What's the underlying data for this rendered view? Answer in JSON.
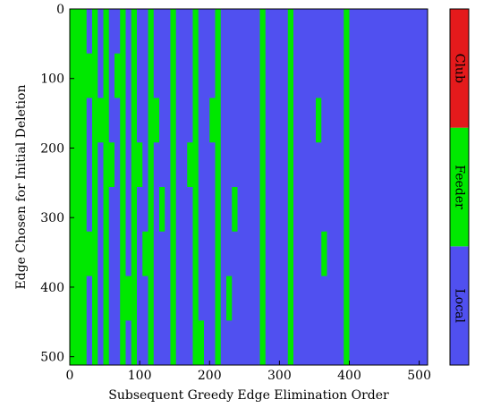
{
  "chart_data": {
    "type": "heatmap",
    "xlabel": "Subsequent Greedy Edge Elimination Order",
    "ylabel": "Edge Chosen for Initial Deletion",
    "xlim": [
      0,
      512
    ],
    "ylim": [
      0,
      512
    ],
    "y_inverted": true,
    "xticks": [
      0,
      100,
      200,
      300,
      400,
      500
    ],
    "yticks": [
      0,
      100,
      200,
      300,
      400,
      500
    ],
    "categories": [
      "Local",
      "Feeder",
      "Club"
    ],
    "colors": [
      "#5050f0",
      "#00e800",
      "#e41a1c"
    ],
    "z": [
      [
        1,
        1,
        1,
        0,
        1,
        0,
        1,
        0,
        0,
        1,
        0,
        1,
        0,
        0,
        1,
        0,
        0,
        0,
        1,
        0,
        0,
        0,
        1,
        0,
        0,
        0,
        1,
        0,
        0,
        0,
        0,
        0,
        0,
        0,
        1,
        0,
        0,
        0,
        0,
        1,
        0,
        0,
        0,
        0,
        0,
        0,
        0,
        0,
        0,
        1,
        0,
        0,
        0,
        0,
        0,
        0,
        0,
        0,
        0,
        0,
        0,
        0,
        0,
        0
      ],
      [
        1,
        1,
        1,
        1,
        1,
        0,
        1,
        0,
        1,
        1,
        0,
        1,
        0,
        0,
        1,
        0,
        0,
        0,
        1,
        0,
        0,
        0,
        1,
        0,
        0,
        0,
        1,
        0,
        0,
        0,
        0,
        0,
        0,
        0,
        1,
        0,
        0,
        0,
        0,
        1,
        0,
        0,
        0,
        0,
        0,
        0,
        0,
        0,
        0,
        1,
        0,
        0,
        0,
        0,
        0,
        0,
        0,
        0,
        0,
        0,
        0,
        0,
        0,
        0
      ],
      [
        1,
        1,
        1,
        0,
        1,
        1,
        1,
        0,
        0,
        1,
        0,
        1,
        0,
        0,
        1,
        1,
        0,
        0,
        1,
        0,
        0,
        0,
        1,
        0,
        0,
        1,
        1,
        0,
        0,
        0,
        0,
        0,
        0,
        0,
        1,
        0,
        0,
        0,
        0,
        1,
        0,
        0,
        0,
        0,
        1,
        0,
        0,
        0,
        0,
        1,
        0,
        0,
        0,
        0,
        0,
        0,
        0,
        0,
        0,
        0,
        0,
        0,
        0,
        0
      ],
      [
        1,
        1,
        1,
        0,
        1,
        0,
        1,
        1,
        0,
        1,
        0,
        1,
        1,
        0,
        1,
        0,
        0,
        0,
        1,
        0,
        0,
        1,
        1,
        0,
        0,
        0,
        1,
        0,
        0,
        0,
        0,
        0,
        0,
        0,
        1,
        0,
        0,
        0,
        0,
        1,
        0,
        0,
        0,
        0,
        0,
        0,
        0,
        0,
        0,
        1,
        0,
        0,
        0,
        0,
        0,
        0,
        0,
        0,
        0,
        0,
        0,
        0,
        0,
        0
      ],
      [
        1,
        1,
        1,
        0,
        1,
        0,
        1,
        0,
        0,
        1,
        0,
        1,
        0,
        0,
        1,
        0,
        1,
        0,
        1,
        0,
        0,
        0,
        1,
        0,
        0,
        0,
        1,
        0,
        0,
        1,
        0,
        0,
        0,
        0,
        1,
        0,
        0,
        0,
        0,
        1,
        0,
        0,
        0,
        0,
        0,
        0,
        0,
        0,
        0,
        1,
        0,
        0,
        0,
        0,
        0,
        0,
        0,
        0,
        0,
        0,
        0,
        0,
        0,
        0
      ],
      [
        1,
        1,
        1,
        1,
        1,
        0,
        1,
        0,
        0,
        1,
        0,
        1,
        0,
        1,
        1,
        0,
        0,
        0,
        1,
        0,
        0,
        0,
        1,
        0,
        0,
        0,
        1,
        0,
        0,
        0,
        0,
        0,
        0,
        0,
        1,
        0,
        0,
        0,
        0,
        1,
        0,
        0,
        0,
        0,
        0,
        1,
        0,
        0,
        0,
        1,
        0,
        0,
        0,
        0,
        0,
        0,
        0,
        0,
        0,
        0,
        0,
        0,
        0,
        0
      ],
      [
        1,
        1,
        1,
        0,
        1,
        0,
        1,
        0,
        0,
        1,
        1,
        1,
        0,
        0,
        1,
        0,
        0,
        0,
        1,
        0,
        0,
        0,
        1,
        0,
        0,
        0,
        1,
        0,
        1,
        0,
        0,
        0,
        0,
        0,
        1,
        0,
        0,
        0,
        0,
        1,
        0,
        0,
        0,
        0,
        0,
        0,
        0,
        0,
        0,
        1,
        0,
        0,
        0,
        0,
        0,
        0,
        0,
        0,
        0,
        0,
        0,
        0,
        0,
        0
      ],
      [
        1,
        1,
        1,
        0,
        1,
        0,
        1,
        0,
        0,
        1,
        0,
        1,
        0,
        0,
        1,
        0,
        0,
        0,
        1,
        0,
        0,
        0,
        1,
        1,
        0,
        0,
        1,
        0,
        0,
        0,
        0,
        0,
        0,
        0,
        1,
        0,
        0,
        0,
        0,
        1,
        0,
        0,
        0,
        0,
        0,
        0,
        0,
        0,
        0,
        1,
        0,
        0,
        0,
        0,
        0,
        0,
        0,
        0,
        0,
        0,
        0,
        0,
        0,
        0
      ]
    ]
  }
}
